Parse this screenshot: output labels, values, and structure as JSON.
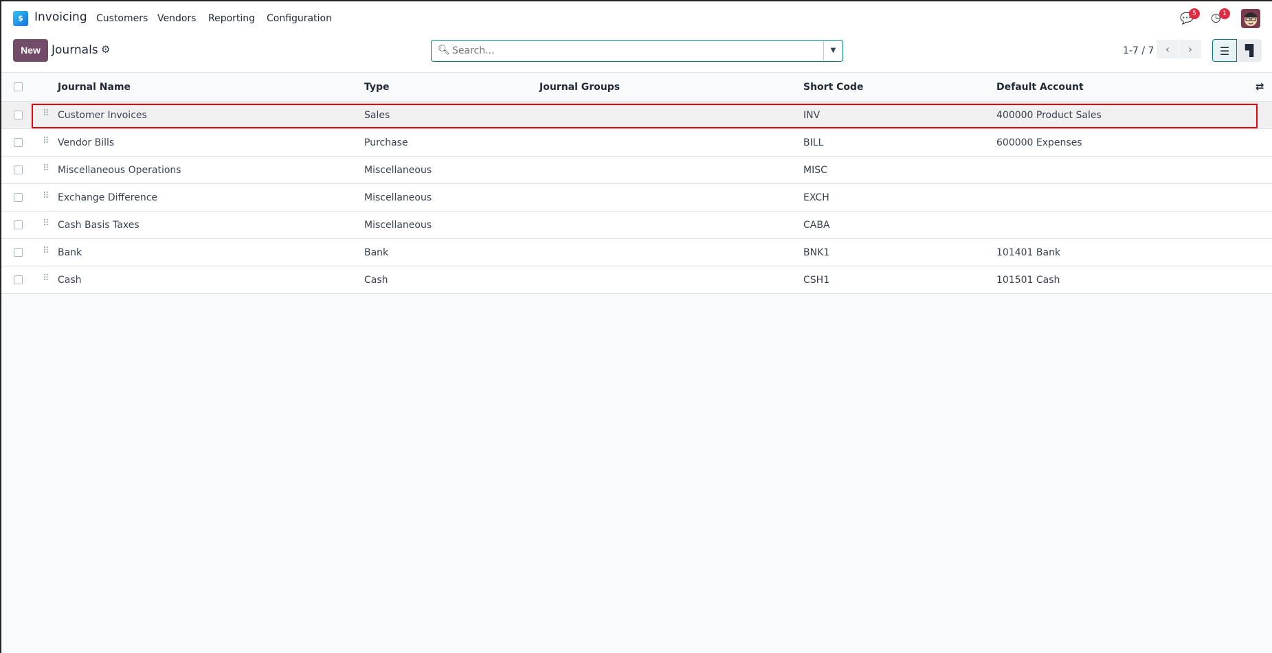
{
  "nav": {
    "app_name": "Invoicing",
    "menu": [
      "Customers",
      "Vendors",
      "Reporting",
      "Configuration"
    ],
    "messages_badge": "5",
    "activities_badge": "1"
  },
  "control_panel": {
    "new_label": "New",
    "title": "Journals",
    "search_placeholder": "Search...",
    "search_value": "",
    "pager": "1-7 / 7"
  },
  "table": {
    "columns": [
      "Journal Name",
      "Type",
      "Journal Groups",
      "Short Code",
      "Default Account"
    ],
    "rows": [
      {
        "name": "Customer Invoices",
        "type": "Sales",
        "groups": "",
        "code": "INV",
        "account": "400000 Product Sales"
      },
      {
        "name": "Vendor Bills",
        "type": "Purchase",
        "groups": "",
        "code": "BILL",
        "account": "600000 Expenses"
      },
      {
        "name": "Miscellaneous Operations",
        "type": "Miscellaneous",
        "groups": "",
        "code": "MISC",
        "account": ""
      },
      {
        "name": "Exchange Difference",
        "type": "Miscellaneous",
        "groups": "",
        "code": "EXCH",
        "account": ""
      },
      {
        "name": "Cash Basis Taxes",
        "type": "Miscellaneous",
        "groups": "",
        "code": "CABA",
        "account": ""
      },
      {
        "name": "Bank",
        "type": "Bank",
        "groups": "",
        "code": "BNK1",
        "account": "101401 Bank"
      },
      {
        "name": "Cash",
        "type": "Cash",
        "groups": "",
        "code": "CSH1",
        "account": "101501 Cash"
      }
    ]
  },
  "colors": {
    "primary": "#714b67",
    "accent": "#017e84",
    "highlight": "#e8000b",
    "badge": "#e02c43"
  }
}
